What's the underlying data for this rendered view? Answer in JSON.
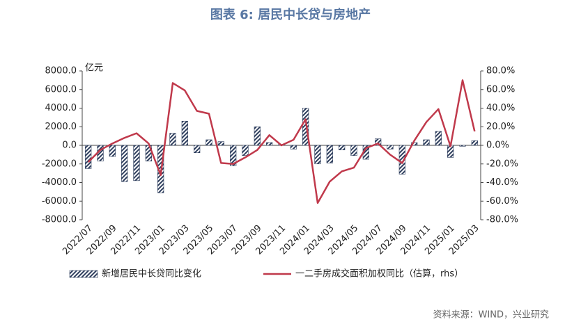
{
  "chart_data": {
    "type": "bar-line",
    "title": "图表 6: 居民中长贷与房地产",
    "y_label": "亿元",
    "source": "资料来源：WIND，兴业研究",
    "categories": [
      "2022/07",
      null,
      "2022/09",
      null,
      "2022/11",
      null,
      "2023/01",
      null,
      "2023/03",
      null,
      "2023/05",
      null,
      "2023/07",
      null,
      "2023/09",
      null,
      "2023/11",
      null,
      "2024/01",
      null,
      "2024/03",
      null,
      "2024/05",
      null,
      "2024/07",
      null,
      "2024/09",
      null,
      "2024/11",
      null,
      "2025/01",
      null,
      "2025/03"
    ],
    "series": [
      {
        "name": "新增居民中长贷同比变化",
        "type": "bar",
        "color": "#2f3f5e",
        "values": [
          -2500,
          -1700,
          -1200,
          -3900,
          -3800,
          -1700,
          -5100,
          1300,
          2600,
          -800,
          600,
          400,
          -2200,
          -1100,
          2000,
          300,
          100,
          -400,
          4000,
          -2000,
          -1900,
          -500,
          -1100,
          -1500,
          700,
          -400,
          -3100,
          300,
          600,
          1500,
          -1300,
          -100,
          500
        ]
      },
      {
        "name": "一二手房成交面积加权同比（估算，rhs）",
        "type": "line",
        "axis": "y2",
        "color": "#c0394b",
        "values": [
          -18,
          -5,
          2,
          8,
          13,
          2,
          -32,
          67,
          59,
          37,
          34,
          -19,
          -20,
          -13,
          -5,
          11,
          0,
          6,
          28,
          -62,
          -39,
          -28,
          -24,
          -3,
          2,
          -10,
          -19,
          5,
          25,
          39,
          -1,
          70,
          15
        ]
      }
    ],
    "ylim": [
      -8000,
      8000
    ],
    "yticks": [
      {
        "value": -8000,
        "label": "-8000.0"
      },
      {
        "value": -6000,
        "label": "-6000.0"
      },
      {
        "value": -4000,
        "label": "-4000.0"
      },
      {
        "value": -2000,
        "label": "-2000.0"
      },
      {
        "value": 0,
        "label": "0.0"
      },
      {
        "value": 2000,
        "label": "2000.0"
      },
      {
        "value": 4000,
        "label": "4000.0"
      },
      {
        "value": 6000,
        "label": "6000.0"
      },
      {
        "value": 8000,
        "label": "8000.0"
      }
    ],
    "y2lim": [
      -80,
      80
    ],
    "y2ticks": [
      {
        "value": -80,
        "label": "-80.0%"
      },
      {
        "value": -60,
        "label": "-60.0%"
      },
      {
        "value": -40,
        "label": "-40.0%"
      },
      {
        "value": -20,
        "label": "-20.0%"
      },
      {
        "value": 0,
        "label": "0.0%"
      },
      {
        "value": 20,
        "label": "20.0%"
      },
      {
        "value": 40,
        "label": "40.0%"
      },
      {
        "value": 60,
        "label": "60.0%"
      },
      {
        "value": 80,
        "label": "80.0%"
      }
    ],
    "grid": false
  }
}
